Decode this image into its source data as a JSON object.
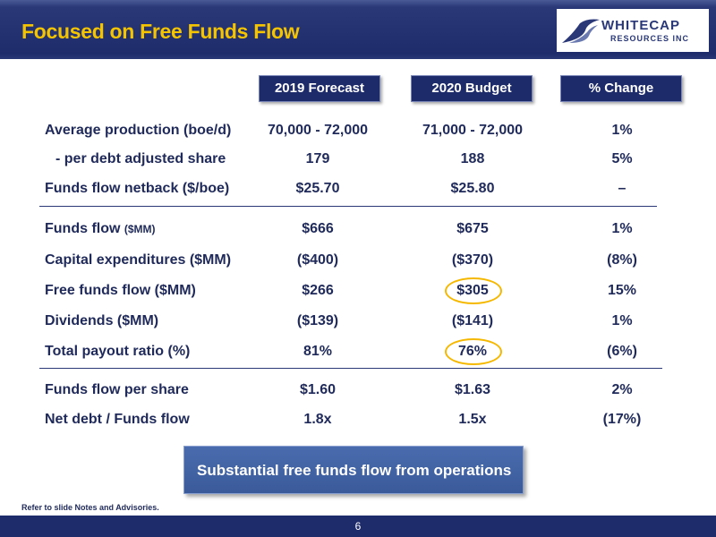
{
  "slide": {
    "title": "Focused on Free Funds Flow",
    "logo": {
      "main": "WHITECAP",
      "sub": "RESOURCES INC"
    },
    "headers": [
      "2019 Forecast",
      "2020 Budget",
      "% Change"
    ],
    "rows": [
      {
        "label": "Average production (boe/d)",
        "v2019": "70,000 - 72,000",
        "v2020": "71,000 - 72,000",
        "change": "1%"
      },
      {
        "label": "- per debt adjusted share",
        "v2019": "179",
        "v2020": "188",
        "change": "5%"
      },
      {
        "label": "Funds flow netback ($/boe)",
        "v2019": "$25.70",
        "v2020": "$25.80",
        "change": "–"
      },
      {
        "label": "Funds flow",
        "label_small": "($MM)",
        "v2019": "$666",
        "v2020": "$675",
        "change": "1%"
      },
      {
        "label": "Capital expenditures ($MM)",
        "v2019": "($400)",
        "v2020": "($370)",
        "change": "(8%)"
      },
      {
        "label": "Free funds flow ($MM)",
        "v2019": "$266",
        "v2020": "$305",
        "change": "15%"
      },
      {
        "label": "Dividends ($MM)",
        "v2019": "($139)",
        "v2020": "($141)",
        "change": "1%"
      },
      {
        "label": "Total payout ratio (%)",
        "v2019": "81%",
        "v2020": "76%",
        "change": "(6%)"
      },
      {
        "label": "Funds flow per share",
        "v2019": "$1.60",
        "v2020": "$1.63",
        "change": "2%"
      },
      {
        "label": "Net debt / Funds flow",
        "v2019": "1.8x",
        "v2020": "1.5x",
        "change": "(17%)"
      }
    ],
    "callout": "Substantial free funds flow from operations",
    "footnote": "Refer to slide Notes and Advisories.",
    "page_number": "6",
    "colors": {
      "navy": "#1f2c6b",
      "title_yellow": "#f5c400",
      "highlight": "#f5b800",
      "callout_blue": "#3a5a9a"
    }
  }
}
